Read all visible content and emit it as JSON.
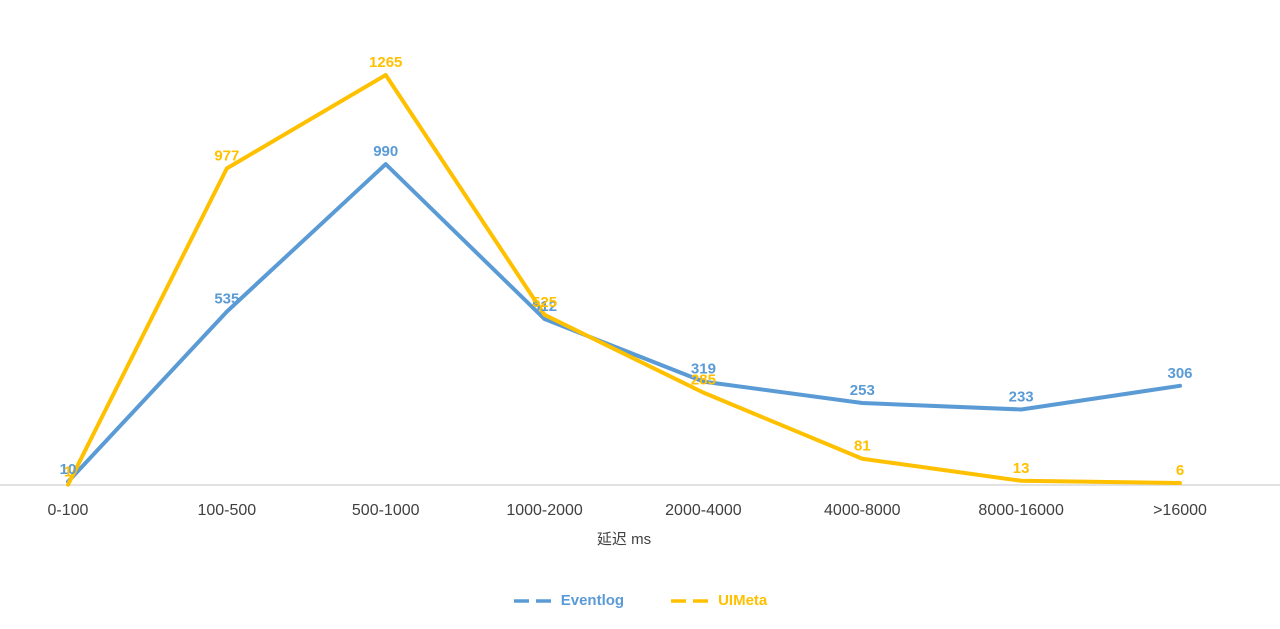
{
  "chart_data": {
    "type": "line",
    "title": "",
    "xlabel": "延迟 ms",
    "ylabel": "",
    "categories": [
      "0-100",
      "100-500",
      "500-1000",
      "1000-2000",
      "2000-4000",
      "4000-8000",
      "8000-16000",
      ">16000"
    ],
    "series": [
      {
        "name": "Eventlog",
        "color": "#5B9BD5",
        "values": [
          10,
          535,
          990,
          512,
          319,
          253,
          233,
          306
        ]
      },
      {
        "name": "UIMeta",
        "color": "#FFC000",
        "values": [
          1,
          977,
          1265,
          525,
          285,
          81,
          13,
          6
        ]
      }
    ],
    "ylim": [
      0,
      1400
    ],
    "grid": false,
    "legend_position": "bottom",
    "axis_line_color": "#D9D9D9",
    "tick_label_color": "#404040",
    "data_labels_shown": true
  }
}
